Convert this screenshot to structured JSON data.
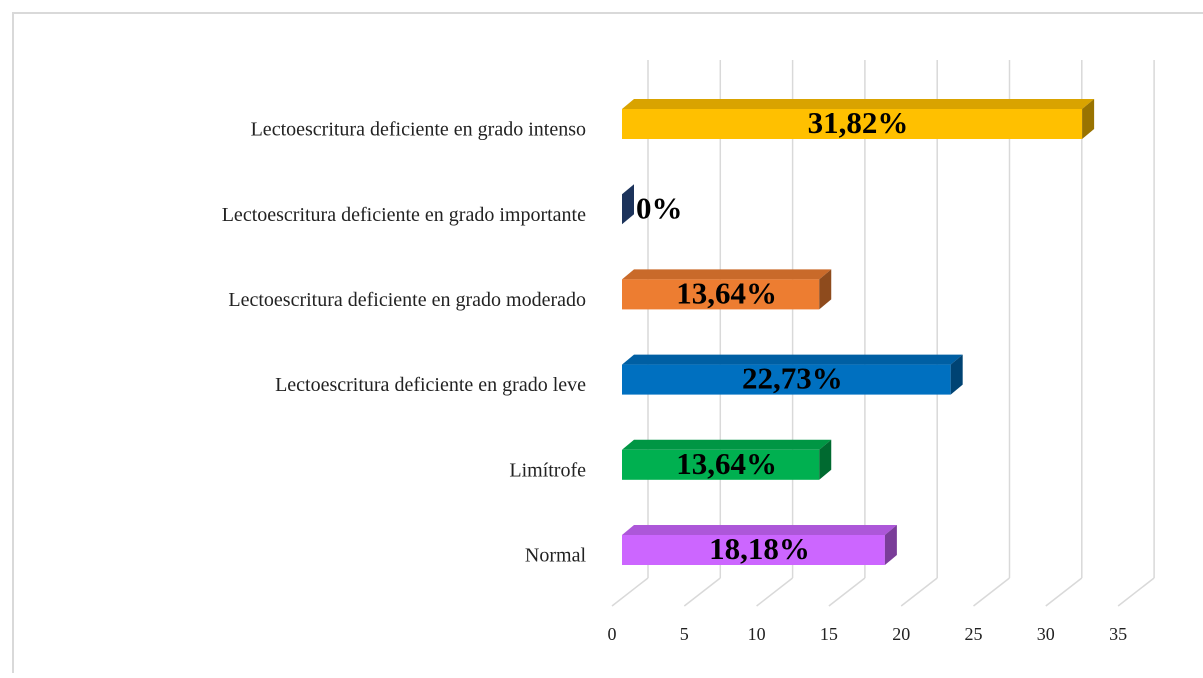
{
  "chart_data": {
    "type": "bar3d",
    "orientation": "horizontal",
    "categories": [
      "Lectoescritura deficiente en grado intenso",
      "Lectoescritura deficiente en grado importante",
      "Lectoescritura deficiente en grado moderado",
      "Lectoescritura deficiente en grado leve",
      "Limítrofe",
      "Normal"
    ],
    "values": [
      31.82,
      0,
      13.64,
      22.73,
      13.64,
      18.18
    ],
    "value_labels": [
      "31,82%",
      "0%",
      "13,64%",
      "22,73%",
      "13,64%",
      "18,18%"
    ],
    "colors": [
      "#FFC000",
      "#2F5597",
      "#ED7D31",
      "#0070C0",
      "#00B050",
      "#CC66FF"
    ],
    "xlim": [
      0,
      35
    ],
    "xticks": [
      0,
      5,
      10,
      15,
      20,
      25,
      30,
      35
    ],
    "grid": true
  }
}
